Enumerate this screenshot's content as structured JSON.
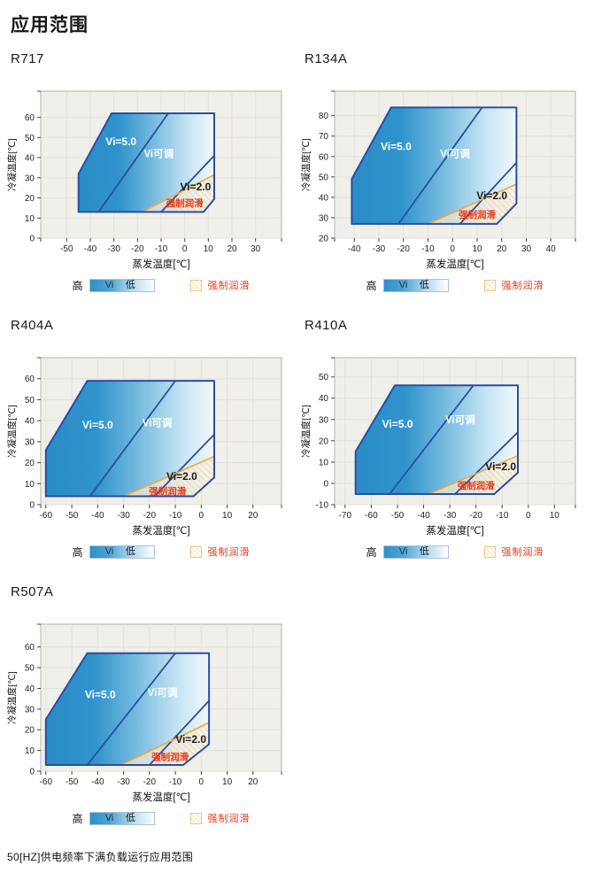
{
  "page": {
    "title": "应用范围",
    "footer": "50[HZ]供电频率下满负载运行应用范围"
  },
  "legend": {
    "high": "高",
    "vi": "Vi",
    "low": "低",
    "forced_lube": "强制润滑"
  },
  "colors": {
    "envelope_border": "#2B4DA2",
    "divider": "#2B4DA2",
    "lube_line": "#F2A73D",
    "lube_text": "#E8391A",
    "region_label_light": "#FFFFFF",
    "region_label_dark": "#1B1B1B",
    "plot_bg": "#F0EFEA",
    "grid": "#E2E1DB",
    "axis_box": "#B3B1AB",
    "tick": "#444444",
    "tick_text": "#222222",
    "gradient_stops": [
      "#2A8CC7",
      "#2F93CC",
      "#7BBEE0",
      "#C9E6F4",
      "#F0F8FC"
    ],
    "hatch_bg": "#FBF4E2",
    "hatch_line": "#F3D9A8"
  },
  "chart_data": [
    {
      "type": "area",
      "id": "r717",
      "title": "R717",
      "x_axis": {
        "label": "蒸发温度[℃]",
        "range": [
          -61,
          41
        ],
        "ticks": [
          -50,
          -40,
          -30,
          -20,
          -10,
          0,
          10,
          20,
          30
        ]
      },
      "y_axis": {
        "label": "冷凝温度[℃]",
        "range": [
          0,
          73
        ],
        "ticks": [
          0,
          10,
          20,
          30,
          40,
          50,
          60
        ]
      },
      "envelope": [
        [
          -45,
          13
        ],
        [
          -45,
          32
        ],
        [
          -31,
          62
        ],
        [
          12.5,
          62
        ],
        [
          12.5,
          19.5
        ],
        [
          8,
          13
        ]
      ],
      "vi5_boundary": [
        [
          -36.5,
          13
        ],
        [
          -7,
          62
        ]
      ],
      "vi2_boundary": [
        [
          -10,
          13
        ],
        [
          12.5,
          41
        ]
      ],
      "lube_line": [
        [
          -18,
          13
        ],
        [
          12.5,
          31.5
        ]
      ],
      "lube_region": [
        [
          -18,
          13
        ],
        [
          12.5,
          31.5
        ],
        [
          12.5,
          19.5
        ],
        [
          8,
          13
        ]
      ],
      "labels": {
        "vi5": {
          "text": "Vi=5.0",
          "pos": [
            -27,
            48
          ]
        },
        "vi_adj": {
          "text": "Vi可调",
          "pos": [
            -11,
            42
          ]
        },
        "vi2": {
          "text": "Vi=2.0",
          "pos": [
            4.6,
            25.5
          ]
        },
        "lube": {
          "text": "强制润滑",
          "pos": [
            0,
            17.5
          ]
        }
      }
    },
    {
      "type": "area",
      "id": "r134a",
      "title": "R134A",
      "x_axis": {
        "label": "蒸发温度[℃]",
        "range": [
          -48,
          50
        ],
        "ticks": [
          -40,
          -30,
          -20,
          -10,
          0,
          10,
          20,
          30,
          40
        ]
      },
      "y_axis": {
        "label": "冷凝温度[℃]",
        "range": [
          20,
          92
        ],
        "ticks": [
          20,
          30,
          40,
          50,
          60,
          70,
          80
        ]
      },
      "envelope": [
        [
          -41,
          27
        ],
        [
          -41,
          49
        ],
        [
          -25,
          84
        ],
        [
          26,
          84
        ],
        [
          26,
          37
        ],
        [
          18,
          27
        ]
      ],
      "vi5_boundary": [
        [
          -22,
          27
        ],
        [
          12,
          84
        ]
      ],
      "vi2_boundary": [
        [
          3,
          27
        ],
        [
          26,
          57
        ]
      ],
      "lube_line": [
        [
          -10,
          27
        ],
        [
          26,
          46.5
        ]
      ],
      "lube_region": [
        [
          -10,
          27
        ],
        [
          26,
          46.5
        ],
        [
          26,
          37
        ],
        [
          18,
          27
        ]
      ],
      "labels": {
        "vi5": {
          "text": "Vi=5.0",
          "pos": [
            -23,
            65
          ]
        },
        "vi_adj": {
          "text": "Vi可调",
          "pos": [
            1,
            61.5
          ]
        },
        "vi2": {
          "text": "Vi=2.0",
          "pos": [
            16,
            41
          ]
        },
        "lube": {
          "text": "强制润滑",
          "pos": [
            10,
            31.5
          ]
        }
      }
    },
    {
      "type": "area",
      "id": "r404a",
      "title": "R404A",
      "x_axis": {
        "label": "蒸发温度[℃]",
        "range": [
          -62,
          31
        ],
        "ticks": [
          -60,
          -50,
          -40,
          -30,
          -20,
          -10,
          0,
          10,
          20
        ]
      },
      "y_axis": {
        "label": "冷凝温度[℃]",
        "range": [
          0,
          70
        ],
        "ticks": [
          0,
          10,
          20,
          30,
          40,
          50,
          60
        ]
      },
      "envelope": [
        [
          -60,
          4
        ],
        [
          -60,
          26
        ],
        [
          -44,
          59
        ],
        [
          5,
          59
        ],
        [
          5,
          13
        ],
        [
          -3,
          4
        ]
      ],
      "vi5_boundary": [
        [
          -43,
          4
        ],
        [
          -10,
          59
        ]
      ],
      "vi2_boundary": [
        [
          -18,
          4
        ],
        [
          5,
          33.5
        ]
      ],
      "lube_line": [
        [
          -30,
          4
        ],
        [
          5,
          23
        ]
      ],
      "lube_region": [
        [
          -30,
          4
        ],
        [
          5,
          23
        ],
        [
          5,
          13
        ],
        [
          -3,
          4
        ]
      ],
      "labels": {
        "vi5": {
          "text": "Vi=5.0",
          "pos": [
            -40,
            38
          ]
        },
        "vi_adj": {
          "text": "Vi可调",
          "pos": [
            -17,
            39
          ]
        },
        "vi2": {
          "text": "Vi=2.0",
          "pos": [
            -7.5,
            13.5
          ]
        },
        "lube": {
          "text": "强制润滑",
          "pos": [
            -13,
            6.5
          ]
        }
      }
    },
    {
      "type": "area",
      "id": "r410a",
      "title": "R410A",
      "x_axis": {
        "label": "蒸发温度[℃]",
        "range": [
          -74,
          18
        ],
        "ticks": [
          -70,
          -60,
          -50,
          -40,
          -30,
          -20,
          -10,
          0,
          10
        ]
      },
      "y_axis": {
        "label": "冷凝温度[℃]",
        "range": [
          -10,
          59
        ],
        "ticks": [
          -10,
          0,
          10,
          20,
          30,
          40,
          50
        ]
      },
      "envelope": [
        [
          -66,
          -5
        ],
        [
          -66,
          15
        ],
        [
          -51,
          46
        ],
        [
          -4,
          46
        ],
        [
          -4,
          5
        ],
        [
          -13,
          -5
        ]
      ],
      "vi5_boundary": [
        [
          -53,
          -5
        ],
        [
          -21,
          46
        ]
      ],
      "vi2_boundary": [
        [
          -28,
          -5
        ],
        [
          -4,
          24
        ]
      ],
      "lube_line": [
        [
          -38,
          -5
        ],
        [
          -4,
          13
        ]
      ],
      "lube_region": [
        [
          -38,
          -5
        ],
        [
          -4,
          13
        ],
        [
          -4,
          5
        ],
        [
          -13,
          -5
        ]
      ],
      "labels": {
        "vi5": {
          "text": "Vi=5.0",
          "pos": [
            -50,
            28
          ]
        },
        "vi_adj": {
          "text": "Vi可调",
          "pos": [
            -26,
            30
          ]
        },
        "vi2": {
          "text": "Vi=2.0",
          "pos": [
            -10.5,
            8
          ]
        },
        "lube": {
          "text": "强制润滑",
          "pos": [
            -20,
            -1
          ]
        }
      }
    },
    {
      "type": "area",
      "id": "r507a",
      "title": "R507A",
      "x_axis": {
        "label": "蒸发温度[℃]",
        "range": [
          -62,
          31
        ],
        "ticks": [
          -60,
          -50,
          -40,
          -30,
          -20,
          -10,
          0,
          10,
          20
        ]
      },
      "y_axis": {
        "label": "冷凝温度[℃]",
        "range": [
          0,
          71
        ],
        "ticks": [
          0,
          10,
          20,
          30,
          40,
          50,
          60
        ]
      },
      "envelope": [
        [
          -60,
          3
        ],
        [
          -60,
          25
        ],
        [
          -44,
          57
        ],
        [
          3,
          57
        ],
        [
          3,
          13
        ],
        [
          -7,
          3
        ]
      ],
      "vi5_boundary": [
        [
          -44,
          3
        ],
        [
          -10,
          57
        ]
      ],
      "vi2_boundary": [
        [
          -20,
          3
        ],
        [
          3,
          34
        ]
      ],
      "lube_line": [
        [
          -31,
          3
        ],
        [
          3,
          23.5
        ]
      ],
      "lube_region": [
        [
          -31,
          3
        ],
        [
          3,
          23.5
        ],
        [
          3,
          13
        ],
        [
          -7,
          3
        ]
      ],
      "labels": {
        "vi5": {
          "text": "Vi=5.0",
          "pos": [
            -39,
            37
          ]
        },
        "vi_adj": {
          "text": "Vi可调",
          "pos": [
            -15,
            38
          ]
        },
        "vi2": {
          "text": "Vi=2.0",
          "pos": [
            -4,
            15.5
          ]
        },
        "lube": {
          "text": "强制润滑",
          "pos": [
            -12,
            7
          ]
        }
      }
    }
  ]
}
